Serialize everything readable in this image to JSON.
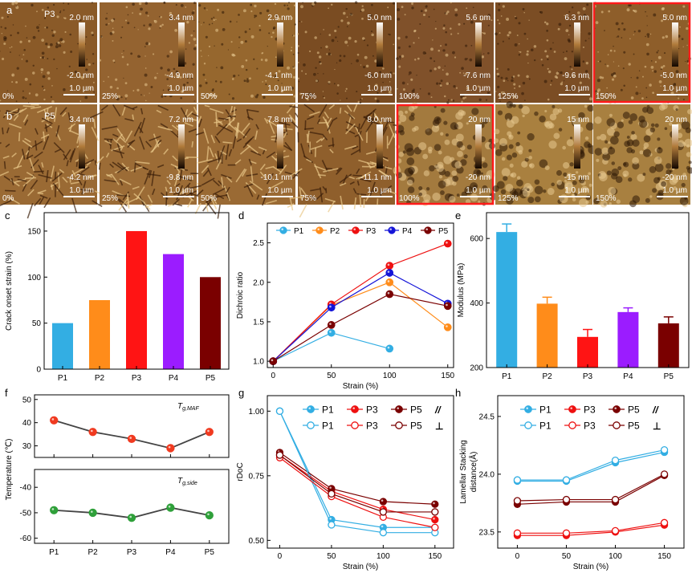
{
  "panel_letters": {
    "a": "a",
    "b": "b",
    "c": "c",
    "d": "d",
    "e": "e",
    "f": "f",
    "g": "g",
    "h": "h"
  },
  "afm": {
    "row_a": {
      "sample": "P3",
      "scale_bar": "1.0 µm",
      "tiles": [
        {
          "strain": "0%",
          "top": "2.0 nm",
          "bottom": "-2.0 nm",
          "highlighted": false,
          "base": "#8a5a28"
        },
        {
          "strain": "25%",
          "top": "3.4 nm",
          "bottom": "-4.9 nm",
          "highlighted": false,
          "base": "#946330"
        },
        {
          "strain": "50%",
          "top": "2.9 nm",
          "bottom": "-4.1 nm",
          "highlighted": false,
          "base": "#96672e"
        },
        {
          "strain": "75%",
          "top": "5.0 nm",
          "bottom": "-6.0 nm",
          "highlighted": false,
          "base": "#7a4c22"
        },
        {
          "strain": "100%",
          "top": "5.6 nm",
          "bottom": "-7.6 nm",
          "highlighted": false,
          "base": "#80512a"
        },
        {
          "strain": "125%",
          "top": "6.3 nm",
          "bottom": "-9.6 nm",
          "highlighted": false,
          "base": "#7b4d24"
        },
        {
          "strain": "150%",
          "top": "5.0 nm",
          "bottom": "-5.0 nm",
          "highlighted": true,
          "base": "#8e5e2a"
        }
      ]
    },
    "row_b": {
      "sample": "P5",
      "scale_bar": "1.0 µm",
      "tiles": [
        {
          "strain": "0%",
          "top": "3.4 nm",
          "bottom": "-4.2 nm",
          "highlighted": false,
          "base": "#9a6a34"
        },
        {
          "strain": "25%",
          "top": "7.2 nm",
          "bottom": "-9.8 nm",
          "highlighted": false,
          "base": "#9c6c36"
        },
        {
          "strain": "50%",
          "top": "7.8 nm",
          "bottom": "-10.1 nm",
          "highlighted": false,
          "base": "#9a6a34"
        },
        {
          "strain": "75%",
          "top": "8.0 nm",
          "bottom": "-11.1 nm",
          "highlighted": false,
          "base": "#8f5f2c"
        },
        {
          "strain": "100%",
          "top": "20 nm",
          "bottom": "-20 nm",
          "highlighted": true,
          "base": "#a37a3e"
        },
        {
          "strain": "125%",
          "top": "15 nm",
          "bottom": "-15 nm",
          "highlighted": false,
          "base": "#a9803f"
        },
        {
          "strain": "150%",
          "top": "20 nm",
          "bottom": "-20 nm",
          "highlighted": false,
          "base": "#a88040"
        }
      ]
    }
  },
  "chart_data": [
    {
      "panel": "c",
      "type": "bar",
      "categories": [
        "P1",
        "P2",
        "P3",
        "P4",
        "P5"
      ],
      "values": [
        50,
        75,
        150,
        125,
        100
      ],
      "colors": [
        "#33aee3",
        "#ff8c1a",
        "#ff1414",
        "#9b1cff",
        "#7a0000"
      ],
      "ylabel": "Crack onset strain (%)",
      "ylim": [
        0,
        170
      ],
      "yticks": [
        "0",
        "50",
        "100",
        "150"
      ]
    },
    {
      "panel": "d",
      "type": "line",
      "x": [
        0,
        50,
        100,
        150
      ],
      "xlabel": "Strain (%)",
      "ylabel": "Dichroic ratio",
      "xlim": [
        -5,
        155
      ],
      "ylim": [
        0.92,
        2.75
      ],
      "xticks": [
        "0",
        "50",
        "100",
        "150"
      ],
      "yticks": [
        "1.0",
        "1.5",
        "2.0",
        "2.5"
      ],
      "series": [
        {
          "name": "P1",
          "color": "#33aee3",
          "values": [
            1.0,
            1.36,
            1.16,
            null
          ]
        },
        {
          "name": "P2",
          "color": "#ff8c1a",
          "values": [
            1.0,
            1.71,
            2.0,
            1.43
          ]
        },
        {
          "name": "P3",
          "color": "#ee1111",
          "values": [
            1.0,
            1.72,
            2.21,
            2.49
          ]
        },
        {
          "name": "P4",
          "color": "#1414d8",
          "values": [
            1.0,
            1.68,
            2.12,
            1.73
          ]
        },
        {
          "name": "P5",
          "color": "#7a0000",
          "values": [
            1.0,
            1.46,
            1.85,
            1.7
          ]
        }
      ]
    },
    {
      "panel": "e",
      "type": "bar",
      "categories": [
        "P1",
        "P2",
        "P3",
        "P4",
        "P5"
      ],
      "values": [
        620,
        398,
        295,
        372,
        337
      ],
      "errors": [
        25,
        20,
        23,
        13,
        20
      ],
      "colors": [
        "#33aee3",
        "#ff8c1a",
        "#ff1414",
        "#9b1cff",
        "#7a0000"
      ],
      "ylabel": "Modulus (MPa)",
      "ylim": [
        200,
        680
      ],
      "yticks": [
        "200",
        "400",
        "600"
      ]
    },
    {
      "panel": "f-top",
      "type": "line",
      "categories": [
        "P1",
        "P2",
        "P3",
        "P4",
        "P5"
      ],
      "values": [
        41,
        36,
        33,
        29,
        36
      ],
      "annotation": "T",
      "annotation_sub": "g,MAF",
      "ylim": [
        25,
        52
      ],
      "yticks": [
        "30",
        "40",
        "50"
      ],
      "color": "#f03a20"
    },
    {
      "panel": "f-bottom",
      "type": "line",
      "categories": [
        "P1",
        "P2",
        "P3",
        "P4",
        "P5"
      ],
      "values": [
        -49,
        -50,
        -52,
        -48,
        -51
      ],
      "annotation": "T",
      "annotation_sub": "g,side",
      "ylim": [
        -62,
        -33
      ],
      "yticks": [
        "-60",
        "-50",
        "-40"
      ],
      "color": "#2fa03a"
    },
    {
      "panel": "f",
      "ylabel": "Temperature (℃)"
    },
    {
      "panel": "g",
      "type": "line",
      "x": [
        0,
        50,
        100,
        150
      ],
      "xlabel": "Strain (%)",
      "ylabel": "rDoC",
      "ylim": [
        0.47,
        1.06
      ],
      "yticks": [
        "0.50",
        "0.75",
        "1.00"
      ],
      "xticks": [
        "0",
        "50",
        "100",
        "150"
      ],
      "parallel_symbol": "//",
      "perp_symbol": "⊥",
      "series": [
        {
          "name": "P1",
          "orientation": "par",
          "color": "#33aee3",
          "filled": true,
          "values": [
            1.0,
            0.58,
            0.55,
            0.55
          ]
        },
        {
          "name": "P3",
          "orientation": "par",
          "color": "#ee1111",
          "filled": true,
          "values": [
            0.83,
            0.69,
            0.62,
            0.58
          ]
        },
        {
          "name": "P5",
          "orientation": "par",
          "color": "#7a0000",
          "filled": true,
          "values": [
            0.84,
            0.7,
            0.65,
            0.64
          ]
        },
        {
          "name": "P1",
          "orientation": "perp",
          "color": "#33aee3",
          "filled": false,
          "values": [
            1.0,
            0.56,
            0.53,
            0.53
          ]
        },
        {
          "name": "P3",
          "orientation": "perp",
          "color": "#ee1111",
          "filled": false,
          "values": [
            0.82,
            0.67,
            0.59,
            0.55
          ]
        },
        {
          "name": "P5",
          "orientation": "perp",
          "color": "#7a0000",
          "filled": false,
          "values": [
            0.83,
            0.68,
            0.61,
            0.61
          ]
        }
      ]
    },
    {
      "panel": "h",
      "type": "line",
      "x": [
        0,
        50,
        100,
        150
      ],
      "xlabel": "Strain (%)",
      "ylabel": "Lamellar Stacking",
      "ylabel2": "distance(Å)",
      "ylim": [
        23.36,
        24.68
      ],
      "yticks": [
        "23.5",
        "24.0",
        "24.5"
      ],
      "xticks": [
        "0",
        "50",
        "100",
        "150"
      ],
      "parallel_symbol": "//",
      "perp_symbol": "⊥",
      "series": [
        {
          "name": "P1",
          "orientation": "par",
          "color": "#33aee3",
          "filled": true,
          "values": [
            23.94,
            23.94,
            24.1,
            24.19
          ]
        },
        {
          "name": "P3",
          "orientation": "par",
          "color": "#ee1111",
          "filled": true,
          "values": [
            23.47,
            23.47,
            23.5,
            23.56
          ]
        },
        {
          "name": "P5",
          "orientation": "par",
          "color": "#7a0000",
          "filled": true,
          "values": [
            23.74,
            23.76,
            23.76,
            23.99
          ]
        },
        {
          "name": "P1",
          "orientation": "perp",
          "color": "#33aee3",
          "filled": false,
          "values": [
            23.95,
            23.95,
            24.12,
            24.21
          ]
        },
        {
          "name": "P3",
          "orientation": "perp",
          "color": "#ee1111",
          "filled": false,
          "values": [
            23.49,
            23.49,
            23.51,
            23.58
          ]
        },
        {
          "name": "P5",
          "orientation": "perp",
          "color": "#7a0000",
          "filled": false,
          "values": [
            23.77,
            23.78,
            23.78,
            24.0
          ]
        }
      ]
    }
  ]
}
